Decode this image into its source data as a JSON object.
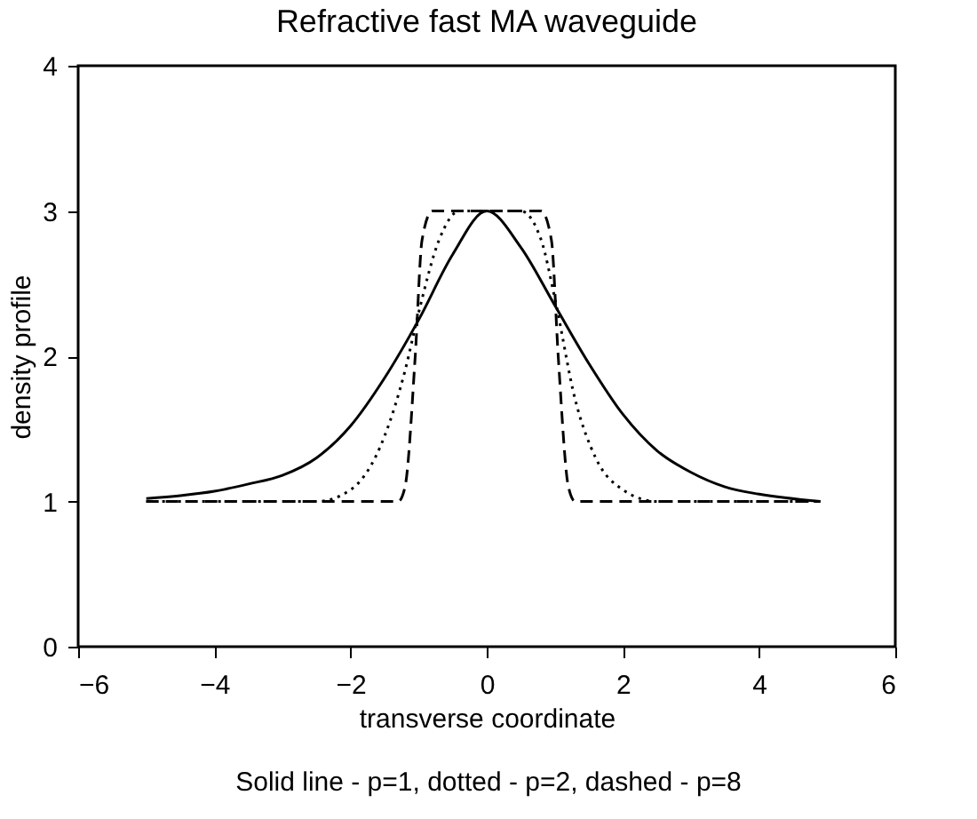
{
  "chart_data": {
    "type": "line",
    "title": "Refractive fast MA waveguide",
    "xlabel": "transverse coordinate",
    "ylabel": "density profile",
    "annotations": [
      "Solid line - p=1, dotted - p=2, dashed - p=8"
    ],
    "xlim": [
      -6,
      6
    ],
    "xticks": [
      -6,
      -4,
      -2,
      0,
      2,
      4,
      6
    ],
    "ylim": [
      0,
      4
    ],
    "yticks": [
      0,
      1,
      2,
      3,
      4
    ],
    "grid": false,
    "marker": "none",
    "series": [
      {
        "color": "#000000",
        "line_style": "solid",
        "x": [
          -5,
          -4.5,
          -4,
          -3.5,
          -3,
          -2.5,
          -2,
          -1.5,
          -1,
          -0.5,
          0,
          0.5,
          1,
          1.5,
          2,
          2.5,
          3,
          3.5,
          4,
          4.9
        ],
        "values": [
          1.02,
          1.04,
          1.07,
          1.12,
          1.18,
          1.3,
          1.52,
          1.85,
          2.25,
          2.7,
          3.0,
          2.75,
          2.35,
          1.95,
          1.6,
          1.35,
          1.2,
          1.1,
          1.05,
          1.0
        ]
      },
      {
        "color": "#000000",
        "line_style": "dotted",
        "x": [
          -5,
          -2.5,
          -2,
          -1.5,
          -1.2,
          -1,
          -0.7,
          -0.4,
          0.5,
          0.8,
          1,
          1.3,
          1.6,
          2,
          2.5,
          4.9
        ],
        "values": [
          1.0,
          1.0,
          1.08,
          1.45,
          1.9,
          2.3,
          2.8,
          3.0,
          3.0,
          2.8,
          2.4,
          1.7,
          1.3,
          1.08,
          1.0,
          1.0
        ]
      },
      {
        "color": "#000000",
        "line_style": "dashed",
        "x": [
          -5,
          -1.3,
          -1.2,
          -1.05,
          -0.95,
          -0.8,
          0.8,
          0.95,
          1.05,
          1.2,
          1.3,
          4.9
        ],
        "values": [
          1.0,
          1.0,
          1.1,
          2.0,
          2.8,
          3.0,
          3.0,
          2.8,
          2.0,
          1.1,
          1.0,
          1.0
        ]
      }
    ]
  }
}
